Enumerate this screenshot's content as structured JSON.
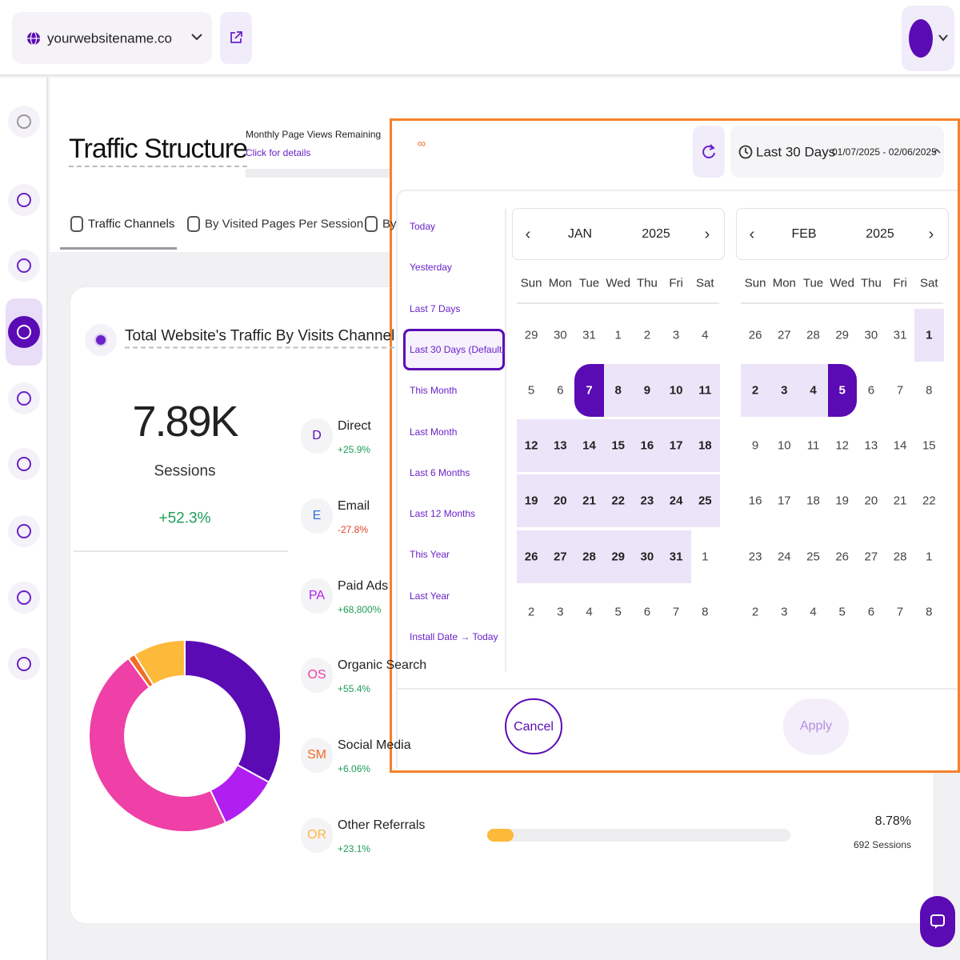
{
  "header": {
    "site": "yourwebsitename.co"
  },
  "page": {
    "title": "Traffic Structure",
    "quota_label": "Monthly Page Views Remaining",
    "quota_link": "Click for details",
    "quota_value": "∞"
  },
  "tabs": [
    "Traffic Channels",
    "By Visited Pages Per Session",
    "By"
  ],
  "card": {
    "title": "Total Website's Traffic By Visits Channel",
    "total": "7.89K",
    "total_label": "Sessions",
    "change": "+52.3%",
    "channels": [
      {
        "abbr": "D",
        "name": "Direct",
        "change": "+25.9%"
      },
      {
        "abbr": "E",
        "name": "Email",
        "change": "-27.8%"
      },
      {
        "abbr": "PA",
        "name": "Paid Ads",
        "change": "+68,800%"
      },
      {
        "abbr": "OS",
        "name": "Organic Search",
        "change": "+55.4%"
      },
      {
        "abbr": "SM",
        "name": "Social Media",
        "change": "+6.06%"
      },
      {
        "abbr": "OR",
        "name": "Other Referrals",
        "change": "+23.1%",
        "share": "8.78%",
        "sessions": "692 Sessions"
      }
    ]
  },
  "chart_data": {
    "type": "donut",
    "categories": [
      "Direct",
      "Paid Ads",
      "Organic Search",
      "Social Media",
      "Other Referrals"
    ],
    "values": [
      33,
      10,
      47,
      1.2,
      8.78
    ],
    "colors": [
      "#5a0bb4",
      "#b11ff0",
      "#ee40a6",
      "#f26c22",
      "#fdb93a"
    ]
  },
  "datepicker": {
    "range_label": "Last 30 Days",
    "range_dates": "01/07/2025 - 02/06/2025",
    "presets": [
      "Today",
      "Yesterday",
      "Last 7 Days",
      "Last 30 Days (Default)",
      "This Month",
      "Last Month",
      "Last 6 Months",
      "Last 12 Months",
      "This Year",
      "Last Year",
      "Install Date → Today"
    ],
    "weekdays": [
      "Sun",
      "Mon",
      "Tue",
      "Wed",
      "Thu",
      "Fri",
      "Sat"
    ],
    "calendars": [
      {
        "month": "JAN",
        "year": "2025",
        "days": [
          29,
          30,
          31,
          1,
          2,
          3,
          4,
          5,
          6,
          7,
          8,
          9,
          10,
          11,
          12,
          13,
          14,
          15,
          16,
          17,
          18,
          19,
          20,
          21,
          22,
          23,
          24,
          25,
          26,
          27,
          28,
          29,
          30,
          31,
          1,
          2,
          3,
          4,
          5,
          6,
          7,
          8
        ]
      },
      {
        "month": "FEB",
        "year": "2025",
        "days": [
          26,
          27,
          28,
          29,
          30,
          31,
          1,
          2,
          3,
          4,
          5,
          6,
          7,
          8,
          9,
          10,
          11,
          12,
          13,
          14,
          15,
          16,
          17,
          18,
          19,
          20,
          21,
          22,
          23,
          24,
          25,
          26,
          27,
          28,
          1,
          2,
          3,
          4,
          5,
          6,
          7,
          8
        ]
      }
    ],
    "cancel": "Cancel",
    "apply": "Apply"
  }
}
